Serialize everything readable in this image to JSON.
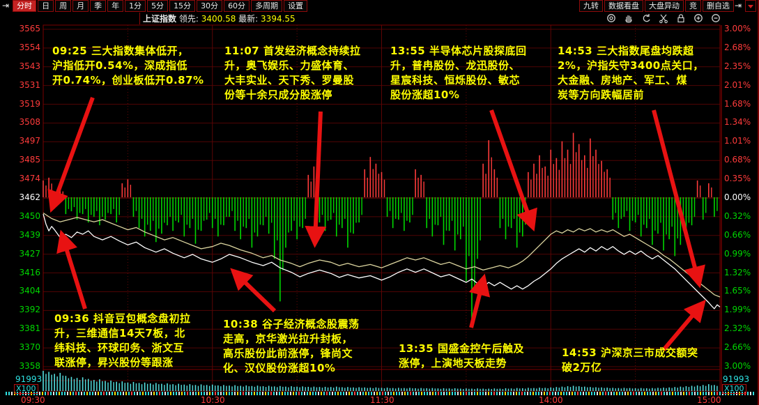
{
  "toolbar": {
    "left_tabs": [
      "分时",
      "日",
      "周",
      "月",
      "季",
      "年",
      "1分",
      "5分",
      "15分",
      "30分",
      "60分",
      "多周期",
      "设置"
    ],
    "active_tab": "分时",
    "right_tabs": [
      "九转",
      "数据看盘",
      "大盘异动",
      "竞",
      "删自选"
    ]
  },
  "info_bar": {
    "index_name": "上证指数",
    "lead_label": "领先:",
    "lead_value": "3400.58",
    "last_label": "最新:",
    "last_value": "3394.55",
    "tool_icons": [
      "eye",
      "hand",
      "undo",
      "scissors",
      "lock",
      "zoom-in",
      "zoom-out"
    ]
  },
  "annotations": [
    {
      "time": "09:25",
      "text": "09:25 三大指数集体低开，\n沪指低开0.54%，深成指低\n开0.74%，创业板低开0.87%"
    },
    {
      "time": "11:07",
      "text": "11:07 首发经济概念持续拉\n升，奥飞娱乐、力盛体育、\n大丰实业、天下秀、罗曼股\n份等十余只成分股涨停"
    },
    {
      "time": "13:55",
      "text": "13:55 半导体芯片股探底回\n升，普冉股份、龙迅股份、\n星宸科技、恒烁股份、敏芯\n股份涨超10%"
    },
    {
      "time": "14:53",
      "text": "14:53 三大指数尾盘均跌超\n2%，沪指失守3400点关口，\n大金融、房地产、军工、煤\n炭等方向跌幅居前"
    },
    {
      "time": "09:36",
      "text": "09:36 抖音豆包概念盘初拉\n升，三维通信14天7板，北\n纬科技、环球印务、浙文互\n联涨停，昇兴股份等跟涨"
    },
    {
      "time": "10:38",
      "text": "10:38 谷子经济概念股震荡\n走高，京华激光拉升封板，\n高乐股份此前涨停，锋尚文\n化、汉仪股份涨超10%"
    },
    {
      "time": "13:35",
      "text": "13:35 国盛金控午后触及\n涨停，上演地天板走势"
    },
    {
      "time": "14:53",
      "text": "14:53 沪深京三市成交额突\n破2万亿"
    }
  ],
  "chart_data": {
    "type": "line",
    "title": "上证指数 分时走势",
    "prev_close": 3462.33,
    "left_axis": [
      "3565",
      "3554",
      "3543",
      "3531",
      "3519",
      "3508",
      "3497",
      "3485",
      "3474",
      "3462",
      "3450",
      "3439",
      "3427",
      "3416",
      "3404",
      "3392",
      "3381",
      "3370",
      "3358"
    ],
    "right_axis": [
      "3.00%",
      "2.68%",
      "2.35%",
      "2.01%",
      "1.68%",
      "1.34%",
      "1.01%",
      "0.68%",
      "0.35%",
      "0.00%",
      "0.32%",
      "0.66%",
      "0.99%",
      "1.32%",
      "1.65%",
      "1.99%",
      "2.32%",
      "2.66%",
      "3.00%"
    ],
    "time_labels": [
      "09:30",
      "10:30",
      "11:30",
      "14:00",
      "15:00"
    ],
    "volume_scale_max": "91993",
    "volume_unit": "X100",
    "colors": {
      "up": "#ff3b3b",
      "down": "#00d800",
      "flat": "#ffffff",
      "index_line": "#ffffff",
      "leader_line": "#ddd6a0",
      "volume": "#55e0e0",
      "grid": "#4f0404",
      "grid_strong": "#8a0b0b",
      "arrow": "#e81212",
      "annotation": "#ffff00",
      "cyan": "#2ee0e0"
    },
    "index_line": [
      [
        0,
        -0.3
      ],
      [
        1,
        -0.48
      ],
      [
        2,
        -0.6
      ],
      [
        3,
        -0.52
      ],
      [
        4,
        -0.58
      ],
      [
        6,
        -0.72
      ],
      [
        8,
        -0.66
      ],
      [
        10,
        -0.72
      ],
      [
        12,
        -0.62
      ],
      [
        14,
        -0.66
      ],
      [
        16,
        -0.6
      ],
      [
        18,
        -0.7
      ],
      [
        21,
        -0.76
      ],
      [
        24,
        -0.7
      ],
      [
        27,
        -0.78
      ],
      [
        30,
        -0.85
      ],
      [
        33,
        -0.8
      ],
      [
        36,
        -0.9
      ],
      [
        40,
        -0.98
      ],
      [
        43,
        -0.92
      ],
      [
        46,
        -1.0
      ],
      [
        50,
        -1.08
      ],
      [
        53,
        -1.02
      ],
      [
        56,
        -1.1
      ],
      [
        60,
        -1.16
      ],
      [
        63,
        -1.1
      ],
      [
        66,
        -1.02
      ],
      [
        70,
        -1.08
      ],
      [
        74,
        -1.16
      ],
      [
        78,
        -1.22
      ],
      [
        81,
        -1.16
      ],
      [
        84,
        -1.26
      ],
      [
        88,
        -1.34
      ],
      [
        91,
        -1.42
      ],
      [
        94,
        -1.36
      ],
      [
        98,
        -1.3
      ],
      [
        102,
        -1.36
      ],
      [
        105,
        -1.43
      ],
      [
        108,
        -1.38
      ],
      [
        112,
        -1.44
      ],
      [
        116,
        -1.4
      ],
      [
        120,
        -1.48
      ],
      [
        123,
        -1.42
      ],
      [
        126,
        -1.34
      ],
      [
        129,
        -1.28
      ],
      [
        132,
        -1.34
      ],
      [
        135,
        -1.28
      ],
      [
        138,
        -1.35
      ],
      [
        141,
        -1.42
      ],
      [
        144,
        -1.38
      ],
      [
        147,
        -1.45
      ],
      [
        150,
        -1.52
      ],
      [
        152,
        -1.46
      ],
      [
        154,
        -1.54
      ],
      [
        156,
        -1.6
      ],
      [
        158,
        -1.52
      ],
      [
        160,
        -1.58
      ],
      [
        162,
        -1.52
      ],
      [
        164,
        -1.58
      ],
      [
        166,
        -1.64
      ],
      [
        168,
        -1.58
      ],
      [
        170,
        -1.64
      ],
      [
        172,
        -1.58
      ],
      [
        174,
        -1.5
      ],
      [
        176,
        -1.44
      ],
      [
        178,
        -1.36
      ],
      [
        180,
        -1.28
      ],
      [
        182,
        -1.18
      ],
      [
        184,
        -1.1
      ],
      [
        186,
        -1.04
      ],
      [
        188,
        -0.98
      ],
      [
        190,
        -0.92
      ],
      [
        192,
        -0.98
      ],
      [
        194,
        -0.9
      ],
      [
        196,
        -0.96
      ],
      [
        198,
        -0.88
      ],
      [
        200,
        -0.94
      ],
      [
        202,
        -0.88
      ],
      [
        204,
        -0.96
      ],
      [
        206,
        -1.02
      ],
      [
        208,
        -0.96
      ],
      [
        210,
        -1.02
      ],
      [
        212,
        -0.96
      ],
      [
        214,
        -1.04
      ],
      [
        216,
        -1.1
      ],
      [
        218,
        -1.04
      ],
      [
        220,
        -1.12
      ],
      [
        222,
        -1.2
      ],
      [
        224,
        -1.28
      ],
      [
        226,
        -1.38
      ],
      [
        228,
        -1.48
      ],
      [
        230,
        -1.58
      ],
      [
        232,
        -1.68
      ],
      [
        234,
        -1.78
      ],
      [
        236,
        -1.88
      ],
      [
        237,
        -1.94
      ],
      [
        238,
        -1.99
      ],
      [
        239,
        -1.92
      ],
      [
        240,
        -1.96
      ]
    ],
    "leader_line": [
      [
        0,
        -0.28
      ],
      [
        3,
        -0.38
      ],
      [
        6,
        -0.44
      ],
      [
        9,
        -0.4
      ],
      [
        12,
        -0.36
      ],
      [
        15,
        -0.4
      ],
      [
        18,
        -0.44
      ],
      [
        21,
        -0.4
      ],
      [
        24,
        -0.46
      ],
      [
        27,
        -0.52
      ],
      [
        30,
        -0.58
      ],
      [
        33,
        -0.54
      ],
      [
        36,
        -0.62
      ],
      [
        40,
        -0.7
      ],
      [
        43,
        -0.76
      ],
      [
        46,
        -0.72
      ],
      [
        50,
        -0.8
      ],
      [
        53,
        -0.86
      ],
      [
        56,
        -0.92
      ],
      [
        60,
        -0.88
      ],
      [
        63,
        -0.82
      ],
      [
        66,
        -0.86
      ],
      [
        70,
        -0.94
      ],
      [
        74,
        -1.0
      ],
      [
        78,
        -1.08
      ],
      [
        81,
        -1.04
      ],
      [
        84,
        -1.12
      ],
      [
        88,
        -1.18
      ],
      [
        91,
        -1.24
      ],
      [
        94,
        -1.18
      ],
      [
        98,
        -1.12
      ],
      [
        102,
        -1.16
      ],
      [
        105,
        -1.22
      ],
      [
        108,
        -1.18
      ],
      [
        112,
        -1.24
      ],
      [
        116,
        -1.2
      ],
      [
        120,
        -1.26
      ],
      [
        123,
        -1.2
      ],
      [
        126,
        -1.14
      ],
      [
        129,
        -1.08
      ],
      [
        132,
        -1.12
      ],
      [
        135,
        -1.08
      ],
      [
        138,
        -1.14
      ],
      [
        141,
        -1.2
      ],
      [
        144,
        -1.16
      ],
      [
        147,
        -1.22
      ],
      [
        150,
        -1.28
      ],
      [
        153,
        -1.24
      ],
      [
        156,
        -1.3
      ],
      [
        159,
        -1.26
      ],
      [
        162,
        -1.22
      ],
      [
        165,
        -1.26
      ],
      [
        168,
        -1.2
      ],
      [
        170,
        -1.14
      ],
      [
        172,
        -1.06
      ],
      [
        174,
        -0.96
      ],
      [
        176,
        -0.86
      ],
      [
        178,
        -0.76
      ],
      [
        180,
        -0.66
      ],
      [
        182,
        -0.6
      ],
      [
        184,
        -0.64
      ],
      [
        186,
        -0.58
      ],
      [
        188,
        -0.62
      ],
      [
        190,
        -0.56
      ],
      [
        192,
        -0.6
      ],
      [
        194,
        -0.56
      ],
      [
        196,
        -0.62
      ],
      [
        198,
        -0.58
      ],
      [
        200,
        -0.62
      ],
      [
        202,
        -0.58
      ],
      [
        204,
        -0.64
      ],
      [
        206,
        -0.7
      ],
      [
        208,
        -0.66
      ],
      [
        210,
        -0.72
      ],
      [
        212,
        -0.78
      ],
      [
        214,
        -0.84
      ],
      [
        216,
        -0.9
      ],
      [
        218,
        -0.96
      ],
      [
        220,
        -1.04
      ],
      [
        222,
        -1.1
      ],
      [
        224,
        -1.18
      ],
      [
        226,
        -1.26
      ],
      [
        228,
        -1.34
      ],
      [
        230,
        -1.42
      ],
      [
        232,
        -1.5
      ],
      [
        234,
        -1.58
      ],
      [
        236,
        -1.66
      ],
      [
        238,
        -1.74
      ],
      [
        240,
        -1.78
      ]
    ],
    "leader_bars_step_min": 2,
    "leader_bars": [
      0.3,
      0.35,
      -0.2,
      0.15,
      -0.3,
      -0.25,
      -0.4,
      -0.3,
      -0.45,
      -0.35,
      -0.5,
      -0.4,
      -0.3,
      -0.45,
      0.25,
      0.32,
      -0.35,
      -0.55,
      -0.7,
      -0.6,
      -0.8,
      -0.65,
      -0.5,
      -0.6,
      -0.45,
      -0.7,
      -0.55,
      -0.83,
      -0.6,
      -0.4,
      -0.55,
      -0.7,
      -0.5,
      -0.35,
      -0.6,
      -0.75,
      -0.55,
      -0.9,
      -0.7,
      -0.5,
      -0.65,
      -1.1,
      -1.86,
      -0.9,
      -0.6,
      -0.75,
      -0.55,
      0.4,
      0.55,
      -0.45,
      -0.6,
      -0.4,
      -0.7,
      -0.55,
      -0.9,
      -0.65,
      -0.45,
      0.5,
      0.72,
      0.6,
      0.45,
      -0.35,
      -0.55,
      -0.4,
      -0.6,
      -0.45,
      0.5,
      0.4,
      -0.55,
      -0.7,
      -0.5,
      -0.85,
      -0.6,
      -0.95,
      -0.75,
      -1.5,
      -2.3,
      -1.1,
      0.6,
      1.02,
      0.5,
      -0.55,
      -0.75,
      -0.55,
      -0.9,
      -0.7,
      0.45,
      0.6,
      0.75,
      0.55,
      0.85,
      0.7,
      1.0,
      0.85,
      1.15,
      0.95,
      0.75,
      1.05,
      0.85,
      0.65,
      0.5,
      -0.4,
      -0.55,
      -0.35,
      -0.6,
      -0.45,
      -0.7,
      -0.55,
      -0.85,
      -0.65,
      -0.95,
      -0.75,
      -1.05,
      -0.85,
      -0.65,
      -0.5,
      0.3,
      -0.4,
      0.25,
      -0.35
    ],
    "volume_bars": [
      1.0,
      0.95,
      0.85,
      0.9,
      0.75,
      0.7,
      0.65,
      0.68,
      0.6,
      0.55,
      0.58,
      0.5,
      0.52,
      0.46,
      0.48,
      0.42,
      0.45,
      0.4,
      0.42,
      0.38,
      0.4,
      0.36,
      0.38,
      0.34,
      0.36,
      0.32,
      0.34,
      0.3,
      0.33,
      0.3,
      0.32,
      0.28,
      0.3,
      0.27,
      0.29,
      0.26,
      0.28,
      0.25,
      0.27,
      0.24,
      0.26,
      0.23,
      0.25,
      0.22,
      0.24,
      0.22,
      0.23,
      0.21,
      0.22,
      0.2,
      0.21,
      0.2,
      0.22,
      0.19,
      0.2,
      0.18,
      0.19,
      0.18,
      0.17,
      0.18,
      0.16,
      0.17,
      0.15,
      0.16,
      0.15,
      0.16,
      0.14,
      0.15,
      0.14,
      0.15,
      0.13,
      0.14,
      0.13,
      0.14,
      0.12,
      0.13,
      0.12,
      0.13,
      0.12,
      0.12,
      0.13,
      0.12,
      0.14,
      0.13,
      0.15,
      0.14,
      0.16,
      0.15,
      0.17,
      0.16,
      0.18,
      0.2,
      0.22,
      0.24,
      0.26,
      0.24,
      0.22,
      0.2,
      0.19,
      0.18,
      0.17,
      0.16,
      0.15,
      0.16,
      0.15,
      0.14,
      0.15,
      0.14,
      0.15,
      0.16,
      0.17,
      0.18,
      0.2,
      0.22,
      0.24,
      0.26,
      0.28,
      0.3,
      0.34,
      0.3
    ],
    "tick_strip_colors": [
      "#2ee0e0",
      "#2ee0e0",
      "#e8e8e8",
      "#ffe000",
      "#2ee0e0",
      "#ff4040",
      "#2ee0e0",
      "#e8e8e8",
      "#2ee0e0",
      "#ffe000"
    ]
  }
}
